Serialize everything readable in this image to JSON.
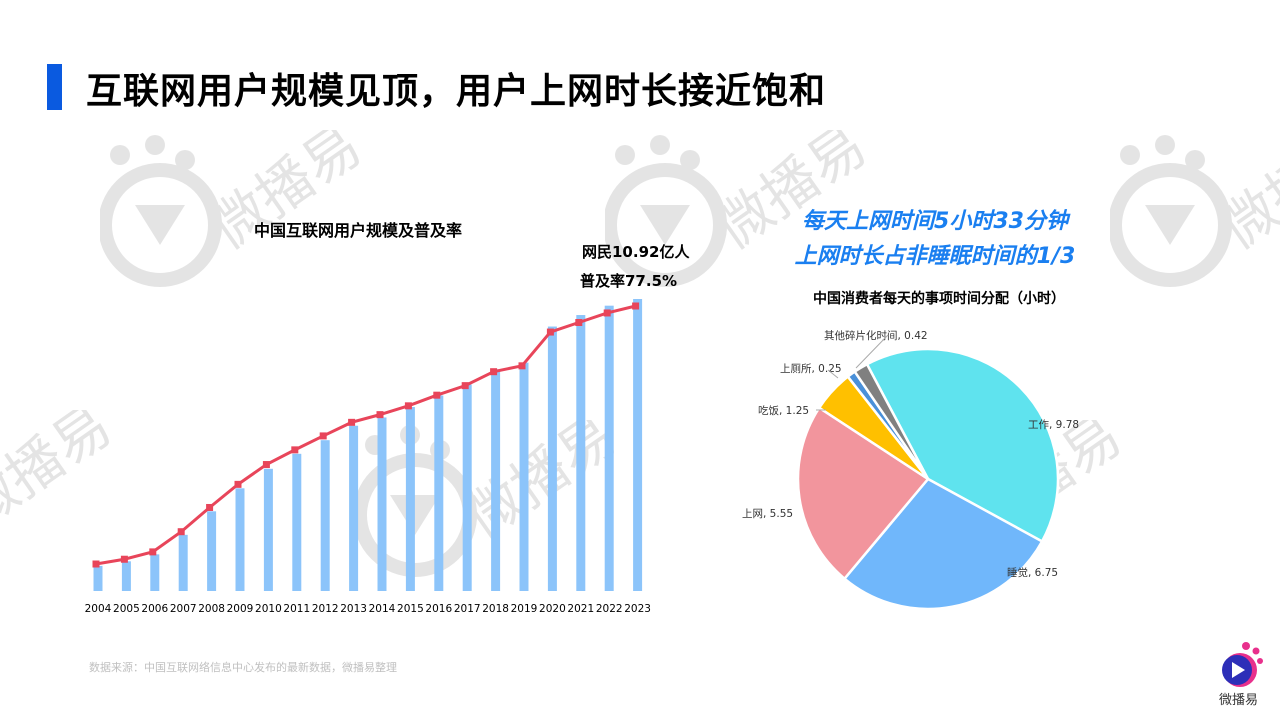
{
  "page": {
    "title": "互联网用户规模见顶，用户上网时长接近饱和",
    "accent_color": "#0a5ae0",
    "source": "数据来源：中国互联网络信息中心发布的最新数据，微播易整理",
    "logo_text": "微播易",
    "watermark_text": "微播易"
  },
  "left_chart": {
    "title": "中国互联网用户规模及普及率",
    "annotation_line1": "网民10.92亿人",
    "annotation_line2": "普及率77.5%"
  },
  "right_chart": {
    "highlight_line1": "每天上网时间5小时33分钟",
    "highlight_line2": "上网时长占非睡眠时间的1/3",
    "title": "中国消费者每天的事项时间分配（小时）"
  },
  "chart_data": [
    {
      "type": "bar",
      "title": "中国互联网用户规模及普及率",
      "categories": [
        "2004",
        "2005",
        "2006",
        "2007",
        "2008",
        "2009",
        "2010",
        "2011",
        "2012",
        "2013",
        "2014",
        "2015",
        "2016",
        "2017",
        "2018",
        "2019",
        "2020",
        "2021",
        "2022",
        "2023"
      ],
      "series": [
        {
          "name": "网民规模（亿人）",
          "type": "bar",
          "color": "#8cc4fa",
          "values": [
            0.94,
            1.11,
            1.37,
            2.1,
            2.98,
            3.84,
            4.57,
            5.13,
            5.64,
            6.18,
            6.49,
            6.88,
            7.31,
            7.72,
            8.29,
            8.54,
            9.89,
            10.32,
            10.67,
            10.92
          ]
        },
        {
          "name": "普及率（%）",
          "type": "line",
          "color": "#e8455a",
          "values": [
            7.2,
            8.5,
            10.5,
            16.0,
            22.6,
            28.9,
            34.3,
            38.3,
            42.1,
            45.8,
            47.9,
            50.3,
            53.2,
            55.8,
            59.6,
            61.2,
            70.4,
            73.0,
            75.6,
            77.5
          ]
        }
      ],
      "annotations": [
        "网民10.92亿人",
        "普及率77.5%"
      ],
      "xlabel": "",
      "ylabel": "",
      "grid": false,
      "axes_visible": false,
      "legend": "none"
    },
    {
      "type": "pie",
      "title": "中国消费者每天的事项时间分配（小时）",
      "labels": [
        "工作",
        "睡觉",
        "上网",
        "吃饭",
        "上厕所",
        "其他碎片化时间"
      ],
      "values": [
        9.78,
        6.75,
        5.55,
        1.25,
        0.25,
        0.42
      ],
      "colors": [
        "#5fe3ee",
        "#70b7fb",
        "#f2959d",
        "#ffc000",
        "#4a90d9",
        "#808080"
      ],
      "data_labels": [
        "工作, 9.78",
        "睡觉, 6.75",
        "上网, 5.55",
        "吃饭, 1.25",
        "上厕所, 0.25",
        "其他碎片化时间, 0.42"
      ],
      "legend": "none"
    }
  ]
}
